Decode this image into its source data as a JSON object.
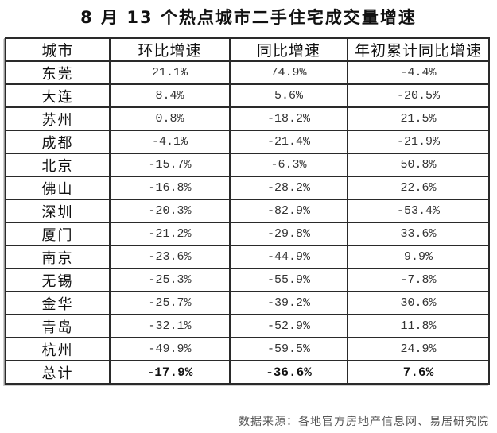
{
  "title": "8 月 13 个热点城市二手住宅成交量增速",
  "table": {
    "headers": [
      "城市",
      "环比增速",
      "同比增速",
      "年初累计同比增速"
    ],
    "rows": [
      {
        "city": "东莞",
        "mom": "21.1%",
        "yoy": "74.9%",
        "ytd": "-4.4%"
      },
      {
        "city": "大连",
        "mom": "8.4%",
        "yoy": "5.6%",
        "ytd": "-20.5%"
      },
      {
        "city": "苏州",
        "mom": "0.8%",
        "yoy": "-18.2%",
        "ytd": "21.5%"
      },
      {
        "city": "成都",
        "mom": "-4.1%",
        "yoy": "-21.4%",
        "ytd": "-21.9%"
      },
      {
        "city": "北京",
        "mom": "-15.7%",
        "yoy": "-6.3%",
        "ytd": "50.8%"
      },
      {
        "city": "佛山",
        "mom": "-16.8%",
        "yoy": "-28.2%",
        "ytd": "22.6%"
      },
      {
        "city": "深圳",
        "mom": "-20.3%",
        "yoy": "-82.9%",
        "ytd": "-53.4%"
      },
      {
        "city": "厦门",
        "mom": "-21.2%",
        "yoy": "-29.8%",
        "ytd": "33.6%"
      },
      {
        "city": "南京",
        "mom": "-23.6%",
        "yoy": "-44.9%",
        "ytd": "9.9%"
      },
      {
        "city": "无锡",
        "mom": "-25.3%",
        "yoy": "-55.9%",
        "ytd": "-7.8%"
      },
      {
        "city": "金华",
        "mom": "-25.7%",
        "yoy": "-39.2%",
        "ytd": "30.6%"
      },
      {
        "city": "青岛",
        "mom": "-32.1%",
        "yoy": "-52.9%",
        "ytd": "11.8%"
      },
      {
        "city": "杭州",
        "mom": "-49.9%",
        "yoy": "-59.5%",
        "ytd": "24.9%"
      }
    ],
    "total": {
      "city": "总计",
      "mom": "-17.9%",
      "yoy": "-36.6%",
      "ytd": "7.6%"
    }
  },
  "source": "数据来源：各地官方房地产信息网、易居研究院"
}
